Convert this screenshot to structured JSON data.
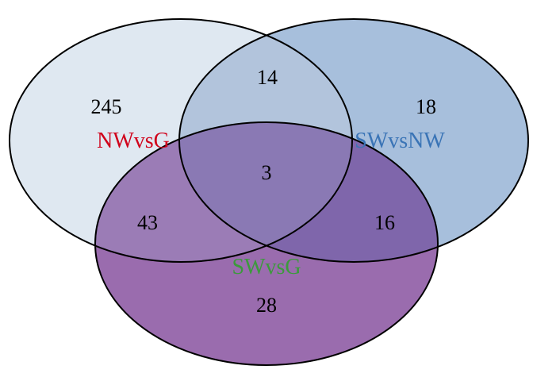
{
  "diagram": {
    "sets": [
      {
        "label": "NWvsG",
        "label_color": "#d0021b",
        "fill": "#dfe8f1",
        "only_count": "245"
      },
      {
        "label": "SWvsNW",
        "label_color": "#3a74b6",
        "fill": "#a7bfdc",
        "only_count": "18"
      },
      {
        "label": "SWvsG",
        "label_color": "#3c9a3c",
        "fill": "#9a6cae",
        "only_count": "28"
      }
    ],
    "overlaps": {
      "NWvsG_SWvsNW": "14",
      "NWvsG_SWvsG": "43",
      "SWvsNW_SWvsG": "16",
      "all_three": "3"
    },
    "colors": {
      "outline": "#000000",
      "overlap_top": "#b2c4dc",
      "overlap_left": "#9b7cb6",
      "overlap_right": "#7f66ab",
      "overlap_center": "#8a79b4"
    }
  }
}
